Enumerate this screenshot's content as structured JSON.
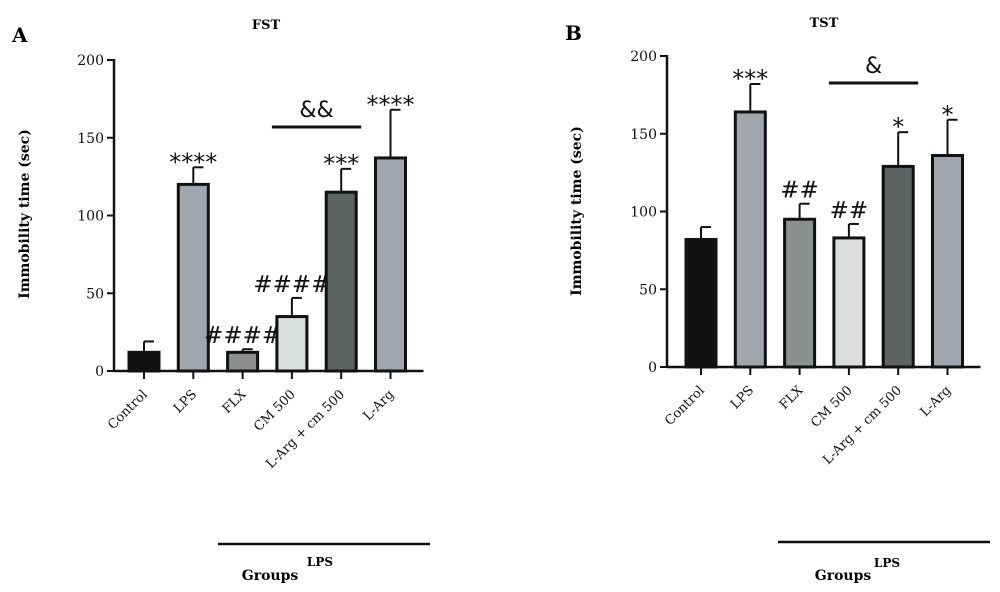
{
  "chart_data": [
    {
      "type": "bar",
      "panel_label": "A",
      "title": "FST",
      "ylabel": "Immobility time (sec)",
      "xlabel": "Groups",
      "group_label": "LPS",
      "categories": [
        "Control",
        "LPS",
        "FLX",
        "CM 500",
        "L-Arg + cm 500",
        "L-Arg"
      ],
      "values": [
        12,
        120,
        12,
        35,
        115,
        137
      ],
      "errors": [
        7,
        11,
        2,
        12,
        15,
        31
      ],
      "annotations": [
        "",
        "****",
        "####",
        "####",
        "***",
        "****"
      ],
      "bracket": {
        "from": "CM 500",
        "to": "L-Arg + cm 500",
        "label": "&&"
      },
      "colors": [
        "#111111",
        "#a0a6ad",
        "#8c908e",
        "#dadfde",
        "#5d6362",
        "#a0a6ad"
      ],
      "ylim": [
        0,
        200
      ],
      "yticks": [
        0,
        50,
        100,
        150,
        200
      ]
    },
    {
      "type": "bar",
      "panel_label": "B",
      "title": "TST",
      "ylabel": "Immobility time (sec)",
      "xlabel": "Groups",
      "group_label": "LPS",
      "categories": [
        "Control",
        "LPS",
        "FLX",
        "CM 500",
        "L-Arg + cm 500",
        "L-Arg"
      ],
      "values": [
        82,
        164,
        95,
        83,
        129,
        136
      ],
      "errors": [
        8,
        18,
        10,
        9,
        22,
        23
      ],
      "annotations": [
        "",
        "***",
        "##",
        "##",
        "*",
        "*"
      ],
      "bracket": {
        "from": "CM 500",
        "to": "L-Arg + cm 500",
        "label": "&"
      },
      "colors": [
        "#111111",
        "#a0a6ad",
        "#8c908e",
        "#dadfde",
        "#5d6362",
        "#a0a6ad"
      ],
      "ylim": [
        0,
        200
      ],
      "yticks": [
        0,
        50,
        100,
        150,
        200
      ]
    }
  ]
}
